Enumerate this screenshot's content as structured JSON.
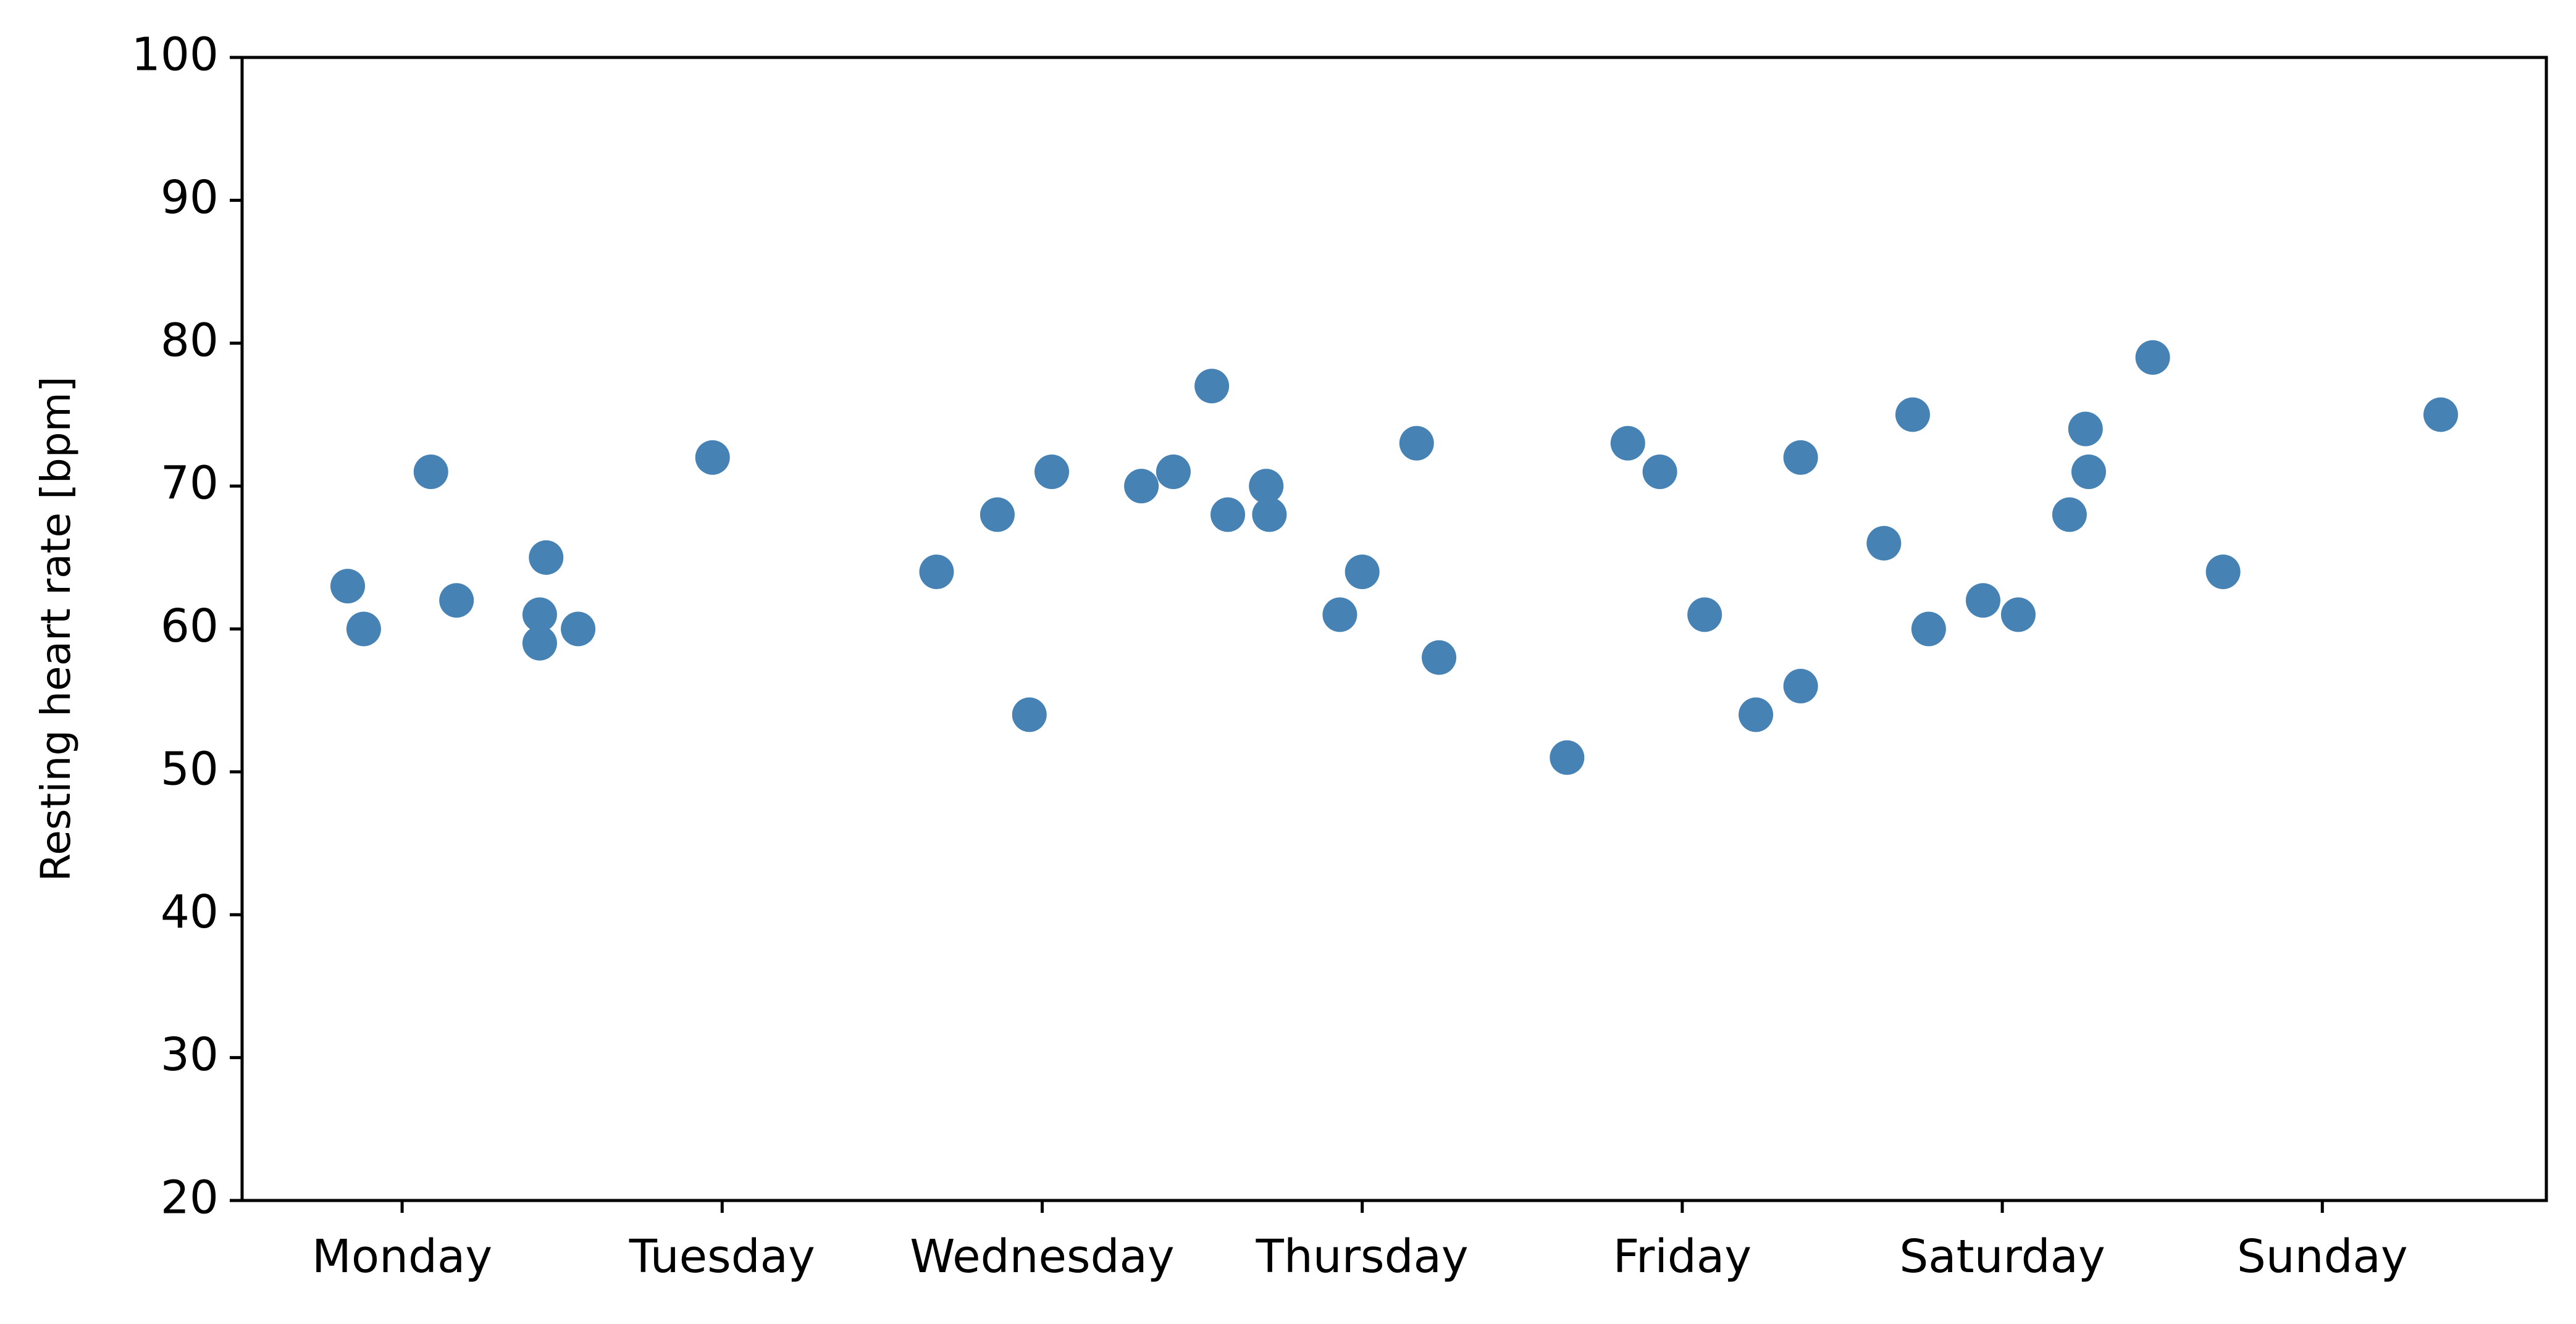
{
  "chart_data": {
    "type": "scatter",
    "title": "",
    "xlabel": "",
    "ylabel": "Resting heart rate [bpm]",
    "x_categories": [
      "Monday",
      "Tuesday",
      "Wednesday",
      "Thursday",
      "Friday",
      "Saturday",
      "Sunday"
    ],
    "xlim": [
      -0.5,
      6.7
    ],
    "ylim": [
      20,
      100
    ],
    "yticks": [
      20,
      30,
      40,
      50,
      60,
      70,
      80,
      90,
      100
    ],
    "grid": false,
    "legend": "none",
    "marker_color": "#4682b4",
    "points": [
      {
        "x": -0.17,
        "y": 63
      },
      {
        "x": -0.12,
        "y": 60
      },
      {
        "x": 0.09,
        "y": 71
      },
      {
        "x": 0.17,
        "y": 62
      },
      {
        "x": 0.43,
        "y": 61
      },
      {
        "x": 0.43,
        "y": 59
      },
      {
        "x": 0.45,
        "y": 65
      },
      {
        "x": 0.55,
        "y": 60
      },
      {
        "x": 0.97,
        "y": 72
      },
      {
        "x": 1.67,
        "y": 64
      },
      {
        "x": 1.86,
        "y": 68
      },
      {
        "x": 1.96,
        "y": 54
      },
      {
        "x": 2.03,
        "y": 71
      },
      {
        "x": 2.31,
        "y": 70
      },
      {
        "x": 2.41,
        "y": 71
      },
      {
        "x": 2.53,
        "y": 77
      },
      {
        "x": 2.58,
        "y": 68
      },
      {
        "x": 2.7,
        "y": 70
      },
      {
        "x": 2.71,
        "y": 68
      },
      {
        "x": 2.93,
        "y": 61
      },
      {
        "x": 3.0,
        "y": 64
      },
      {
        "x": 3.17,
        "y": 73
      },
      {
        "x": 3.24,
        "y": 58
      },
      {
        "x": 3.64,
        "y": 51
      },
      {
        "x": 3.83,
        "y": 73
      },
      {
        "x": 3.93,
        "y": 71
      },
      {
        "x": 4.07,
        "y": 61
      },
      {
        "x": 4.23,
        "y": 54
      },
      {
        "x": 4.37,
        "y": 56
      },
      {
        "x": 4.37,
        "y": 72
      },
      {
        "x": 4.63,
        "y": 66
      },
      {
        "x": 4.72,
        "y": 75
      },
      {
        "x": 4.77,
        "y": 60
      },
      {
        "x": 4.94,
        "y": 62
      },
      {
        "x": 5.05,
        "y": 61
      },
      {
        "x": 5.21,
        "y": 68
      },
      {
        "x": 5.26,
        "y": 74
      },
      {
        "x": 5.27,
        "y": 71
      },
      {
        "x": 5.47,
        "y": 79
      },
      {
        "x": 5.69,
        "y": 64
      },
      {
        "x": 6.37,
        "y": 75
      }
    ]
  }
}
